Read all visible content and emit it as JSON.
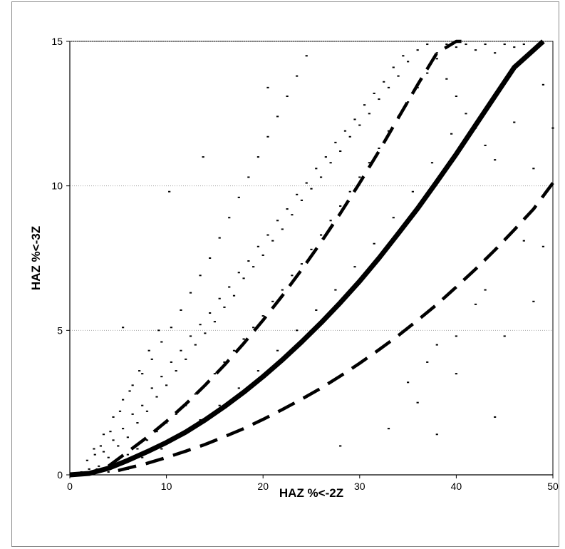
{
  "chart_data": {
    "type": "scatter",
    "title": "",
    "xlabel": "HAZ %<-2Z",
    "ylabel": "HAZ %<-3Z",
    "xlim": [
      0,
      50
    ],
    "ylim": [
      0,
      15
    ],
    "x_ticks": [
      0,
      10,
      20,
      30,
      40,
      50
    ],
    "y_ticks": [
      0,
      5,
      10,
      15
    ],
    "grid": "horizontal dotted at y=5, 10, 15",
    "legend": "none",
    "series": [
      {
        "style": "scatter-points",
        "color": "#000000",
        "points": [
          [
            0.5,
            0.05
          ],
          [
            1.2,
            0.1
          ],
          [
            2,
            0.2
          ],
          [
            3,
            0.3
          ],
          [
            3.5,
            0.8
          ],
          [
            4,
            0.6
          ],
          [
            4.5,
            1.2
          ],
          [
            5,
            1.0
          ],
          [
            5.5,
            1.6
          ],
          [
            6,
            1.3
          ],
          [
            6.5,
            2.1
          ],
          [
            7,
            1.8
          ],
          [
            7.5,
            2.4
          ],
          [
            8,
            2.2
          ],
          [
            8.5,
            3.0
          ],
          [
            9,
            2.7
          ],
          [
            9.5,
            3.4
          ],
          [
            10,
            3.1
          ],
          [
            10.5,
            3.9
          ],
          [
            11,
            3.6
          ],
          [
            11.5,
            4.3
          ],
          [
            12,
            4.0
          ],
          [
            12.5,
            4.8
          ],
          [
            13,
            4.5
          ],
          [
            13.5,
            5.2
          ],
          [
            14,
            4.9
          ],
          [
            14.5,
            5.6
          ],
          [
            15,
            5.3
          ],
          [
            15.5,
            6.1
          ],
          [
            16,
            5.8
          ],
          [
            16.5,
            6.5
          ],
          [
            17,
            6.2
          ],
          [
            17.5,
            7.0
          ],
          [
            18,
            6.8
          ],
          [
            18.5,
            7.4
          ],
          [
            19,
            7.2
          ],
          [
            19.5,
            7.9
          ],
          [
            20,
            7.6
          ],
          [
            20.5,
            8.3
          ],
          [
            21,
            8.1
          ],
          [
            21.5,
            8.8
          ],
          [
            22,
            8.5
          ],
          [
            22.5,
            9.2
          ],
          [
            23,
            9.0
          ],
          [
            23.5,
            9.7
          ],
          [
            24,
            9.5
          ],
          [
            24.5,
            10.1
          ],
          [
            25,
            9.9
          ],
          [
            25.5,
            10.6
          ],
          [
            26,
            10.3
          ],
          [
            26.5,
            11.0
          ],
          [
            27,
            10.8
          ],
          [
            27.5,
            11.5
          ],
          [
            28,
            11.2
          ],
          [
            28.5,
            11.9
          ],
          [
            29,
            11.7
          ],
          [
            29.5,
            12.3
          ],
          [
            30,
            12.1
          ],
          [
            30.5,
            12.8
          ],
          [
            31,
            12.5
          ],
          [
            31.5,
            13.2
          ],
          [
            32,
            13.0
          ],
          [
            32.5,
            13.6
          ],
          [
            33,
            13.4
          ],
          [
            33.5,
            14.1
          ],
          [
            34,
            13.8
          ],
          [
            34.5,
            14.5
          ],
          [
            35,
            14.3
          ],
          [
            36,
            14.7
          ],
          [
            37,
            14.9
          ],
          [
            38,
            14.6
          ],
          [
            39,
            14.9
          ],
          [
            40,
            14.8
          ],
          [
            41,
            14.9
          ],
          [
            42,
            14.7
          ],
          [
            43,
            14.9
          ],
          [
            44,
            14.6
          ],
          [
            45,
            14.9
          ],
          [
            46,
            14.8
          ],
          [
            47,
            14.9
          ],
          [
            5,
            0.4
          ],
          [
            6,
            0.7
          ],
          [
            7,
            0.9
          ],
          [
            8,
            1.2
          ],
          [
            9,
            1.5
          ],
          [
            10,
            1.8
          ],
          [
            11,
            2.1
          ],
          [
            12,
            2.4
          ],
          [
            13,
            2.8
          ],
          [
            14,
            3.1
          ],
          [
            15,
            3.5
          ],
          [
            16,
            3.9
          ],
          [
            17,
            4.3
          ],
          [
            18,
            4.7
          ],
          [
            19,
            5.1
          ],
          [
            20,
            5.5
          ],
          [
            21,
            6.0
          ],
          [
            22,
            6.4
          ],
          [
            23,
            6.9
          ],
          [
            24,
            7.3
          ],
          [
            25,
            7.8
          ],
          [
            26,
            8.3
          ],
          [
            27,
            8.8
          ],
          [
            28,
            9.3
          ],
          [
            29,
            9.8
          ],
          [
            30,
            10.3
          ],
          [
            31,
            10.8
          ],
          [
            32,
            11.3
          ],
          [
            33,
            11.9
          ],
          [
            34,
            12.4
          ],
          [
            35,
            12.9
          ],
          [
            36,
            13.4
          ],
          [
            37,
            13.9
          ],
          [
            38,
            14.4
          ],
          [
            39,
            13.7
          ],
          [
            40,
            13.1
          ],
          [
            41,
            12.5
          ],
          [
            42,
            12.0
          ],
          [
            43,
            11.4
          ],
          [
            44,
            10.9
          ],
          [
            2.5,
            0.9
          ],
          [
            3.5,
            1.4
          ],
          [
            4.5,
            2.0
          ],
          [
            5.5,
            2.6
          ],
          [
            6.5,
            3.1
          ],
          [
            7.5,
            3.5
          ],
          [
            8.5,
            4.0
          ],
          [
            9.5,
            4.6
          ],
          [
            10.5,
            5.1
          ],
          [
            11.5,
            5.7
          ],
          [
            12.5,
            6.3
          ],
          [
            13.5,
            6.9
          ],
          [
            14.5,
            7.5
          ],
          [
            15.5,
            8.2
          ],
          [
            16.5,
            8.9
          ],
          [
            17.5,
            9.6
          ],
          [
            18.5,
            10.3
          ],
          [
            19.5,
            11.0
          ],
          [
            20.5,
            11.7
          ],
          [
            21.5,
            12.4
          ],
          [
            22.5,
            13.1
          ],
          [
            23.5,
            13.8
          ],
          [
            24.5,
            14.5
          ],
          [
            7.5,
            0.6
          ],
          [
            9.5,
            0.9
          ],
          [
            11.5,
            1.4
          ],
          [
            13.5,
            1.9
          ],
          [
            15.5,
            2.4
          ],
          [
            17.5,
            3.0
          ],
          [
            19.5,
            3.6
          ],
          [
            21.5,
            4.3
          ],
          [
            23.5,
            5.0
          ],
          [
            25.5,
            5.7
          ],
          [
            27.5,
            6.4
          ],
          [
            29.5,
            7.2
          ],
          [
            31.5,
            8.0
          ],
          [
            33.5,
            8.9
          ],
          [
            35.5,
            9.8
          ],
          [
            37.5,
            10.8
          ],
          [
            39.5,
            11.8
          ],
          [
            1,
            0.02
          ],
          [
            1.5,
            0.05
          ],
          [
            2.2,
            0.12
          ],
          [
            2.8,
            0.2
          ],
          [
            1.8,
            0.5
          ],
          [
            2.6,
            0.7
          ],
          [
            3.2,
            1.0
          ],
          [
            4.2,
            1.5
          ],
          [
            5.2,
            2.2
          ],
          [
            6.2,
            2.9
          ],
          [
            7.2,
            3.6
          ],
          [
            8.2,
            4.3
          ],
          [
            9.2,
            5.0
          ],
          [
            4,
            0.1
          ],
          [
            6,
            0.2
          ],
          [
            8,
            0.4
          ],
          [
            5.5,
            5.1
          ],
          [
            10.3,
            9.8
          ],
          [
            13.8,
            11.0
          ],
          [
            20.5,
            13.4
          ],
          [
            28,
            1.0
          ],
          [
            33,
            1.6
          ],
          [
            38,
            1.4
          ],
          [
            44,
            2.0
          ],
          [
            36,
            2.5
          ],
          [
            40,
            3.5
          ],
          [
            45,
            4.8
          ],
          [
            48,
            6.0
          ],
          [
            49,
            7.9
          ],
          [
            47,
            8.1
          ],
          [
            50,
            12.0
          ],
          [
            49,
            13.5
          ],
          [
            46,
            12.2
          ],
          [
            48,
            10.6
          ],
          [
            42,
            5.9
          ],
          [
            43,
            6.4
          ],
          [
            40,
            4.8
          ],
          [
            38,
            4.5
          ],
          [
            37,
            3.9
          ],
          [
            35,
            3.2
          ]
        ]
      },
      {
        "style": "solid-thick",
        "color": "#000000",
        "x": [
          0,
          2,
          4,
          6,
          8,
          10,
          12,
          14,
          16,
          18,
          20,
          22,
          24,
          26,
          28,
          30,
          32,
          34,
          36,
          38,
          40,
          42,
          44,
          46,
          48,
          49
        ],
        "y": [
          0,
          0.05,
          0.23,
          0.5,
          0.8,
          1.12,
          1.48,
          1.9,
          2.36,
          2.86,
          3.4,
          3.98,
          4.6,
          5.26,
          5.96,
          6.7,
          7.5,
          8.35,
          9.22,
          10.15,
          11.1,
          12.1,
          13.1,
          14.1,
          14.7,
          15.0
        ]
      },
      {
        "style": "dashed-upper",
        "color": "#000000",
        "x": [
          4,
          6,
          8,
          10,
          12,
          14,
          16,
          18,
          20,
          22,
          24,
          26,
          28,
          30,
          32,
          34,
          36,
          38,
          40,
          41
        ],
        "y": [
          0.3,
          0.8,
          1.3,
          1.85,
          2.45,
          3.1,
          3.8,
          4.55,
          5.35,
          6.2,
          7.1,
          8.05,
          9.05,
          10.1,
          11.2,
          12.35,
          13.5,
          14.6,
          15.4,
          15.0
        ]
      },
      {
        "style": "dashed-lower",
        "color": "#000000",
        "x": [
          5,
          8,
          10,
          12,
          14,
          16,
          18,
          20,
          22,
          24,
          26,
          28,
          30,
          32,
          34,
          36,
          38,
          40,
          42,
          44,
          46,
          48,
          50
        ],
        "y": [
          0.15,
          0.4,
          0.6,
          0.82,
          1.05,
          1.32,
          1.6,
          1.92,
          2.26,
          2.62,
          3.0,
          3.42,
          3.86,
          4.33,
          4.82,
          5.35,
          5.9,
          6.5,
          7.12,
          7.78,
          8.48,
          9.2,
          10.1
        ]
      }
    ]
  }
}
